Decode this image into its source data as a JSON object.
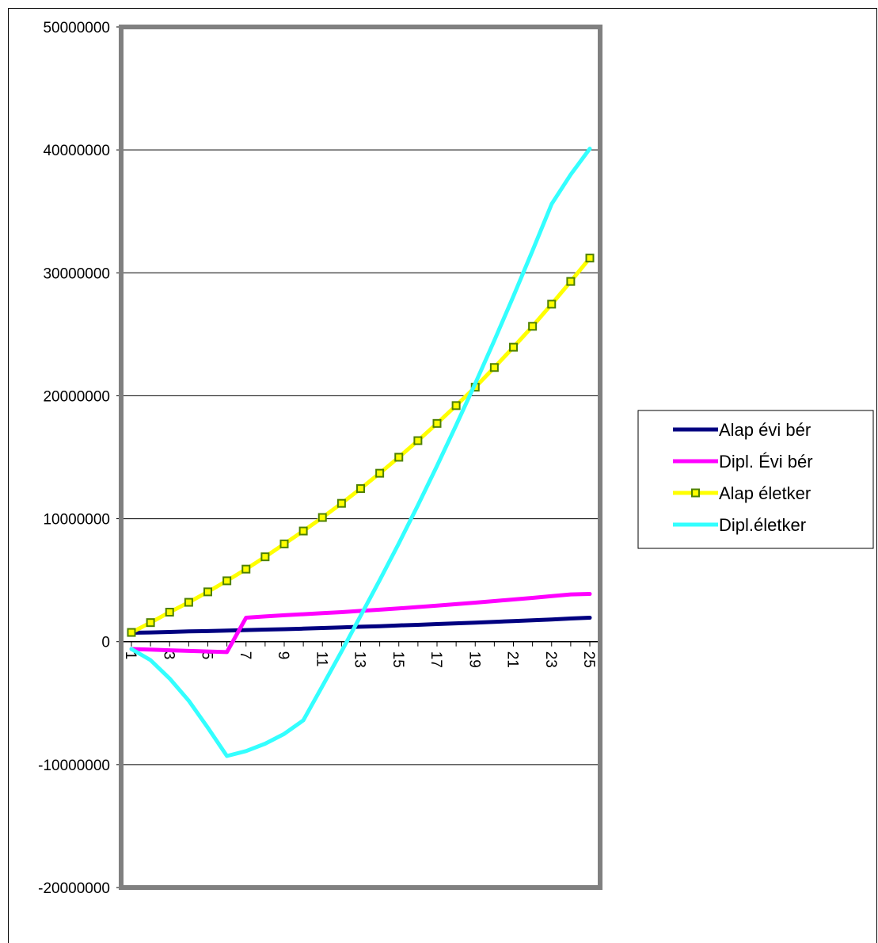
{
  "chart_data": {
    "type": "line",
    "title": "",
    "xlabel": "",
    "ylabel": "",
    "x": [
      1,
      2,
      3,
      4,
      5,
      6,
      7,
      8,
      9,
      10,
      11,
      12,
      13,
      14,
      15,
      16,
      17,
      18,
      19,
      20,
      21,
      22,
      23,
      24,
      25
    ],
    "x_tick_labels": [
      "1",
      "3",
      "5",
      "7",
      "9",
      "11",
      "13",
      "15",
      "17",
      "19",
      "21",
      "23",
      "25"
    ],
    "y_tick_labels": [
      "50000000",
      "40000000",
      "30000000",
      "20000000",
      "10000000",
      "0",
      "-10000000",
      "-20000000"
    ],
    "ylim": [
      -20000000,
      50000000
    ],
    "grid": "horizontal",
    "legend_position": "right",
    "series": [
      {
        "name": "Alap évi bér",
        "color": "#000080",
        "marker": "none",
        "values": [
          720000,
          750000,
          790000,
          830000,
          860000,
          900000,
          940000,
          980000,
          1010000,
          1060000,
          1110000,
          1160000,
          1210000,
          1260000,
          1320000,
          1370000,
          1430000,
          1490000,
          1550000,
          1610000,
          1670000,
          1740000,
          1800000,
          1880000,
          1950000
        ]
      },
      {
        "name": "Dipl. Évi bér",
        "color": "#ff00ff",
        "marker": "none",
        "values": [
          -600000,
          -650000,
          -700000,
          -750000,
          -800000,
          -850000,
          1950000,
          2050000,
          2150000,
          2230000,
          2320000,
          2400000,
          2500000,
          2600000,
          2700000,
          2820000,
          2930000,
          3050000,
          3170000,
          3300000,
          3430000,
          3560000,
          3700000,
          3840000,
          3880000
        ]
      },
      {
        "name": "Alap életker",
        "color": "#ffff00",
        "marker": "square",
        "marker_color": "#4d8000",
        "values": [
          750000,
          1550000,
          2400000,
          3200000,
          4050000,
          4950000,
          5900000,
          6900000,
          7950000,
          9000000,
          10100000,
          11250000,
          12450000,
          13700000,
          15000000,
          16350000,
          17750000,
          19200000,
          20700000,
          22300000,
          23950000,
          25650000,
          27450000,
          29300000,
          31200000
        ]
      },
      {
        "name": "Dipl.életker",
        "color": "#33ffff",
        "marker": "none",
        "values": [
          -600000,
          -1500000,
          -3000000,
          -4800000,
          -7000000,
          -9300000,
          -8900000,
          -8300000,
          -7500000,
          -6400000,
          -3600000,
          -800000,
          2100000,
          5000000,
          8000000,
          11100000,
          14300000,
          17600000,
          21000000,
          24500000,
          28100000,
          31800000,
          35600000,
          38000000,
          40100000
        ]
      }
    ]
  }
}
